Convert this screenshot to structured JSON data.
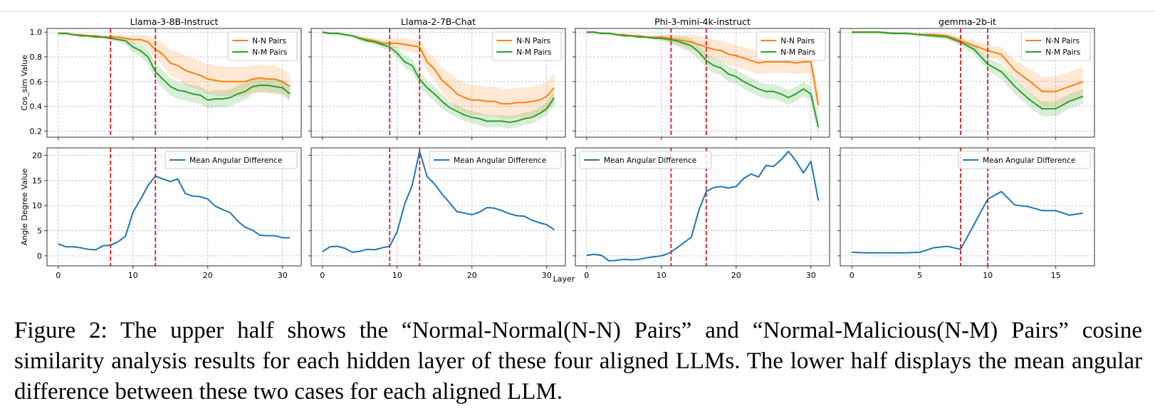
{
  "chart_data": [
    {
      "type": "line",
      "panel": "upper",
      "title": "Llama-3-8B-Instruct",
      "ylabel": "Cos_sim Value",
      "xlabel": "",
      "ylim": [
        0.15,
        1.03
      ],
      "xlim": [
        -1.5,
        32.5
      ],
      "yticks": [
        0.2,
        0.4,
        0.6,
        0.8,
        1.0
      ],
      "xticks": [
        0,
        10,
        20,
        30
      ],
      "vlines": [
        7,
        13
      ],
      "legend": "top-right",
      "x": [
        0,
        1,
        2,
        3,
        4,
        5,
        6,
        7,
        8,
        9,
        10,
        11,
        12,
        13,
        14,
        15,
        16,
        17,
        18,
        19,
        20,
        21,
        22,
        23,
        24,
        25,
        26,
        27,
        28,
        29,
        30,
        31
      ],
      "series": [
        {
          "name": "N-N Pairs",
          "color": "#ff7f0e",
          "values": [
            0.99,
            0.99,
            0.98,
            0.98,
            0.97,
            0.97,
            0.96,
            0.96,
            0.96,
            0.95,
            0.94,
            0.94,
            0.92,
            0.86,
            0.82,
            0.75,
            0.73,
            0.69,
            0.67,
            0.65,
            0.62,
            0.61,
            0.6,
            0.6,
            0.6,
            0.6,
            0.62,
            0.63,
            0.62,
            0.62,
            0.6,
            0.56
          ],
          "band": [
            0.01,
            0.01,
            0.01,
            0.01,
            0.01,
            0.01,
            0.01,
            0.02,
            0.02,
            0.02,
            0.03,
            0.04,
            0.05,
            0.08,
            0.09,
            0.1,
            0.11,
            0.12,
            0.12,
            0.12,
            0.12,
            0.12,
            0.12,
            0.12,
            0.12,
            0.12,
            0.11,
            0.11,
            0.11,
            0.11,
            0.1,
            0.1
          ]
        },
        {
          "name": "N-M Pairs",
          "color": "#2ca02c",
          "values": [
            0.99,
            0.99,
            0.98,
            0.97,
            0.97,
            0.96,
            0.96,
            0.95,
            0.94,
            0.93,
            0.88,
            0.85,
            0.8,
            0.68,
            0.62,
            0.56,
            0.53,
            0.52,
            0.5,
            0.49,
            0.45,
            0.46,
            0.46,
            0.47,
            0.5,
            0.52,
            0.56,
            0.57,
            0.57,
            0.56,
            0.55,
            0.5
          ],
          "band": [
            0.01,
            0.01,
            0.01,
            0.01,
            0.01,
            0.01,
            0.01,
            0.02,
            0.02,
            0.03,
            0.04,
            0.05,
            0.06,
            0.07,
            0.07,
            0.07,
            0.07,
            0.07,
            0.07,
            0.07,
            0.07,
            0.07,
            0.07,
            0.07,
            0.07,
            0.07,
            0.06,
            0.06,
            0.06,
            0.06,
            0.06,
            0.06
          ]
        }
      ]
    },
    {
      "type": "line",
      "panel": "upper",
      "title": "Llama-2-7B-Chat",
      "ylabel": "",
      "xlabel": "",
      "ylim": [
        0.15,
        1.03
      ],
      "xlim": [
        -1.5,
        32.5
      ],
      "yticks": [
        0.2,
        0.4,
        0.6,
        0.8,
        1.0
      ],
      "xticks": [
        0,
        10,
        20,
        30
      ],
      "vlines": [
        9,
        13
      ],
      "legend": "top-right",
      "x": [
        0,
        1,
        2,
        3,
        4,
        5,
        6,
        7,
        8,
        9,
        10,
        11,
        12,
        13,
        14,
        15,
        16,
        17,
        18,
        19,
        20,
        21,
        22,
        23,
        24,
        25,
        26,
        27,
        28,
        29,
        30,
        31
      ],
      "series": [
        {
          "name": "N-N Pairs",
          "color": "#ff7f0e",
          "values": [
            1.0,
            0.99,
            0.99,
            0.98,
            0.97,
            0.95,
            0.94,
            0.93,
            0.91,
            0.91,
            0.91,
            0.9,
            0.89,
            0.88,
            0.76,
            0.7,
            0.61,
            0.56,
            0.5,
            0.47,
            0.45,
            0.45,
            0.44,
            0.44,
            0.42,
            0.42,
            0.43,
            0.43,
            0.44,
            0.45,
            0.48,
            0.55
          ],
          "band": [
            0.01,
            0.01,
            0.01,
            0.01,
            0.01,
            0.02,
            0.02,
            0.02,
            0.03,
            0.03,
            0.04,
            0.05,
            0.05,
            0.06,
            0.08,
            0.09,
            0.1,
            0.11,
            0.12,
            0.12,
            0.12,
            0.12,
            0.12,
            0.12,
            0.12,
            0.12,
            0.12,
            0.12,
            0.12,
            0.12,
            0.12,
            0.12
          ]
        },
        {
          "name": "N-M Pairs",
          "color": "#2ca02c",
          "values": [
            1.0,
            0.99,
            0.99,
            0.98,
            0.97,
            0.95,
            0.93,
            0.92,
            0.9,
            0.88,
            0.83,
            0.76,
            0.73,
            0.62,
            0.55,
            0.5,
            0.44,
            0.39,
            0.36,
            0.33,
            0.31,
            0.3,
            0.28,
            0.28,
            0.28,
            0.27,
            0.28,
            0.3,
            0.31,
            0.34,
            0.38,
            0.47
          ],
          "band": [
            0.01,
            0.01,
            0.01,
            0.01,
            0.01,
            0.02,
            0.02,
            0.02,
            0.03,
            0.03,
            0.04,
            0.05,
            0.05,
            0.06,
            0.06,
            0.06,
            0.06,
            0.05,
            0.05,
            0.05,
            0.05,
            0.05,
            0.05,
            0.05,
            0.05,
            0.05,
            0.05,
            0.05,
            0.05,
            0.05,
            0.05,
            0.06
          ]
        }
      ]
    },
    {
      "type": "line",
      "panel": "upper",
      "title": "Phi-3-mini-4k-instruct",
      "ylabel": "",
      "xlabel": "",
      "ylim": [
        0.15,
        1.03
      ],
      "xlim": [
        -1.5,
        32.5
      ],
      "yticks": [
        0.2,
        0.4,
        0.6,
        0.8,
        1.0
      ],
      "xticks": [
        0,
        10,
        20,
        30
      ],
      "vlines": [
        11.3,
        16
      ],
      "legend": "top-right",
      "x": [
        0,
        1,
        2,
        3,
        4,
        5,
        6,
        7,
        8,
        9,
        10,
        11,
        12,
        13,
        14,
        15,
        16,
        17,
        18,
        19,
        20,
        21,
        22,
        23,
        24,
        25,
        26,
        27,
        28,
        29,
        30,
        31
      ],
      "series": [
        {
          "name": "N-N Pairs",
          "color": "#ff7f0e",
          "values": [
            1.0,
            1.0,
            0.99,
            0.99,
            0.98,
            0.98,
            0.97,
            0.97,
            0.96,
            0.96,
            0.96,
            0.95,
            0.94,
            0.93,
            0.92,
            0.9,
            0.88,
            0.86,
            0.85,
            0.82,
            0.81,
            0.79,
            0.77,
            0.75,
            0.76,
            0.76,
            0.76,
            0.76,
            0.75,
            0.76,
            0.76,
            0.41
          ],
          "band": [
            0.01,
            0.01,
            0.01,
            0.01,
            0.01,
            0.01,
            0.01,
            0.01,
            0.01,
            0.01,
            0.02,
            0.03,
            0.04,
            0.05,
            0.06,
            0.07,
            0.08,
            0.08,
            0.08,
            0.09,
            0.09,
            0.09,
            0.09,
            0.09,
            0.09,
            0.09,
            0.09,
            0.09,
            0.09,
            0.09,
            0.09,
            0.12
          ]
        },
        {
          "name": "N-M Pairs",
          "color": "#2ca02c",
          "values": [
            1.0,
            1.0,
            0.99,
            0.99,
            0.98,
            0.97,
            0.97,
            0.96,
            0.96,
            0.95,
            0.95,
            0.94,
            0.93,
            0.91,
            0.89,
            0.84,
            0.77,
            0.73,
            0.71,
            0.66,
            0.64,
            0.6,
            0.57,
            0.54,
            0.52,
            0.52,
            0.5,
            0.47,
            0.5,
            0.54,
            0.5,
            0.23
          ],
          "band": [
            0.01,
            0.01,
            0.01,
            0.01,
            0.01,
            0.01,
            0.01,
            0.01,
            0.01,
            0.01,
            0.02,
            0.03,
            0.04,
            0.05,
            0.06,
            0.06,
            0.06,
            0.06,
            0.06,
            0.06,
            0.06,
            0.06,
            0.06,
            0.06,
            0.06,
            0.06,
            0.06,
            0.06,
            0.06,
            0.06,
            0.06,
            0.08
          ]
        }
      ]
    },
    {
      "type": "line",
      "panel": "upper",
      "title": "gemma-2b-it",
      "ylabel": "",
      "xlabel": "",
      "ylim": [
        0.15,
        1.03
      ],
      "xlim": [
        -0.85,
        17.85
      ],
      "yticks": [
        0.2,
        0.4,
        0.6,
        0.8,
        1.0
      ],
      "xticks": [
        0,
        5,
        10,
        15
      ],
      "vlines": [
        8,
        10
      ],
      "legend": "top-right",
      "x": [
        0,
        1,
        2,
        3,
        4,
        5,
        6,
        7,
        8,
        9,
        10,
        11,
        12,
        13,
        14,
        15,
        16,
        17
      ],
      "series": [
        {
          "name": "N-N Pairs",
          "color": "#ff7f0e",
          "values": [
            1.0,
            1.0,
            1.0,
            0.99,
            0.99,
            0.98,
            0.98,
            0.97,
            0.93,
            0.89,
            0.85,
            0.82,
            0.69,
            0.61,
            0.52,
            0.52,
            0.56,
            0.6
          ],
          "band": [
            0.01,
            0.01,
            0.01,
            0.01,
            0.01,
            0.01,
            0.02,
            0.02,
            0.03,
            0.04,
            0.05,
            0.06,
            0.08,
            0.1,
            0.12,
            0.12,
            0.12,
            0.12
          ]
        },
        {
          "name": "N-M Pairs",
          "color": "#2ca02c",
          "values": [
            1.0,
            1.0,
            1.0,
            0.99,
            0.99,
            0.98,
            0.97,
            0.96,
            0.92,
            0.86,
            0.74,
            0.68,
            0.56,
            0.46,
            0.38,
            0.38,
            0.44,
            0.48
          ],
          "band": [
            0.01,
            0.01,
            0.01,
            0.01,
            0.01,
            0.01,
            0.02,
            0.02,
            0.03,
            0.04,
            0.05,
            0.06,
            0.06,
            0.06,
            0.06,
            0.06,
            0.06,
            0.06
          ]
        }
      ]
    },
    {
      "type": "line",
      "panel": "lower",
      "title": "",
      "ylabel": "Angle Degree Value",
      "xlabel": "",
      "ylim": [
        -2,
        21.5
      ],
      "xlim": [
        -1.5,
        32.5
      ],
      "yticks": [
        0,
        5,
        10,
        15,
        20
      ],
      "xticks": [
        0,
        10,
        20,
        30
      ],
      "vlines": [
        7,
        13
      ],
      "legend": "top-right",
      "x": [
        0,
        1,
        2,
        3,
        4,
        5,
        6,
        7,
        8,
        9,
        10,
        11,
        12,
        13,
        14,
        15,
        16,
        17,
        18,
        19,
        20,
        21,
        22,
        23,
        24,
        25,
        26,
        27,
        28,
        29,
        30,
        31
      ],
      "series": [
        {
          "name": "Mean Angular Difference",
          "color": "#1f77b4",
          "values": [
            2.4,
            1.8,
            1.8,
            1.6,
            1.3,
            1.2,
            2.0,
            2.1,
            2.8,
            3.9,
            8.7,
            11.2,
            14.0,
            15.9,
            15.3,
            14.8,
            15.3,
            12.4,
            11.9,
            11.8,
            11.3,
            9.9,
            9.2,
            8.6,
            6.9,
            5.7,
            5.1,
            4.1,
            4.0,
            4.0,
            3.6,
            3.6
          ]
        }
      ]
    },
    {
      "type": "line",
      "panel": "lower",
      "title": "",
      "ylabel": "",
      "xlabel": "",
      "ylim": [
        -2,
        21.5
      ],
      "xlim": [
        -1.5,
        32.5
      ],
      "yticks": [
        0,
        5,
        10,
        15,
        20
      ],
      "xticks": [
        0,
        10,
        20,
        30
      ],
      "vlines": [
        9,
        13
      ],
      "legend": "top-right",
      "x": [
        0,
        1,
        2,
        3,
        4,
        5,
        6,
        7,
        8,
        9,
        10,
        11,
        12,
        13,
        14,
        15,
        16,
        17,
        18,
        19,
        20,
        21,
        22,
        23,
        24,
        25,
        26,
        27,
        28,
        29,
        30,
        31
      ],
      "series": [
        {
          "name": "Mean Angular Difference",
          "color": "#1f77b4",
          "values": [
            0.8,
            1.8,
            1.9,
            1.5,
            0.7,
            0.9,
            1.3,
            1.2,
            1.6,
            1.9,
            4.8,
            10.3,
            14.0,
            20.8,
            15.8,
            14.3,
            12.3,
            10.6,
            8.8,
            8.5,
            8.2,
            8.7,
            9.6,
            9.5,
            9.0,
            8.4,
            8.0,
            7.9,
            7.1,
            6.6,
            6.2,
            5.2
          ]
        }
      ]
    },
    {
      "type": "line",
      "panel": "lower",
      "title": "",
      "ylabel": "",
      "xlabel": "Layer",
      "ylim": [
        -2,
        21.5
      ],
      "xlim": [
        -1.5,
        32.5
      ],
      "yticks": [
        0,
        5,
        10,
        15,
        20
      ],
      "xticks": [
        0,
        10,
        20,
        30
      ],
      "vlines": [
        11.3,
        16
      ],
      "legend": "top-left",
      "x": [
        0,
        1,
        2,
        3,
        4,
        5,
        6,
        7,
        8,
        9,
        10,
        11,
        12,
        13,
        14,
        15,
        16,
        17,
        18,
        19,
        20,
        21,
        22,
        23,
        24,
        25,
        26,
        27,
        28,
        29,
        30,
        31
      ],
      "series": [
        {
          "name": "Mean Angular Difference",
          "color": "#1f77b4",
          "values": [
            0.1,
            0.3,
            0.1,
            -1.0,
            -0.9,
            -0.7,
            -0.8,
            -0.7,
            -0.4,
            -0.2,
            0.0,
            0.5,
            1.5,
            2.6,
            3.7,
            9.0,
            12.8,
            13.6,
            13.8,
            13.5,
            13.8,
            15.4,
            16.3,
            15.7,
            18.0,
            17.8,
            19.1,
            20.8,
            18.9,
            16.5,
            18.8,
            11.0
          ]
        }
      ]
    },
    {
      "type": "line",
      "panel": "lower",
      "title": "",
      "ylabel": "",
      "xlabel": "",
      "ylim": [
        -2,
        21.5
      ],
      "xlim": [
        -0.85,
        17.85
      ],
      "yticks": [
        0,
        5,
        10,
        15,
        20
      ],
      "xticks": [
        0,
        5,
        10,
        15
      ],
      "vlines": [
        8,
        10
      ],
      "legend": "top-right",
      "x": [
        0,
        1,
        2,
        3,
        4,
        5,
        6,
        7,
        8,
        9,
        10,
        11,
        12,
        13,
        14,
        15,
        16,
        17
      ],
      "series": [
        {
          "name": "Mean Angular Difference",
          "color": "#1f77b4",
          "values": [
            0.7,
            0.6,
            0.6,
            0.6,
            0.6,
            0.7,
            1.6,
            1.9,
            1.3,
            6.3,
            11.3,
            12.8,
            10.1,
            9.8,
            9.0,
            9.0,
            8.1,
            8.5
          ]
        }
      ]
    }
  ],
  "caption": {
    "text": "Figure 2: The upper half shows the “Normal-Normal(N-N) Pairs” and “Normal-Malicious(N-M) Pairs” cosine similarity analysis results for each hidden layer of these four aligned LLMs. The lower half displays the mean angular difference between these two cases for each aligned LLM."
  }
}
